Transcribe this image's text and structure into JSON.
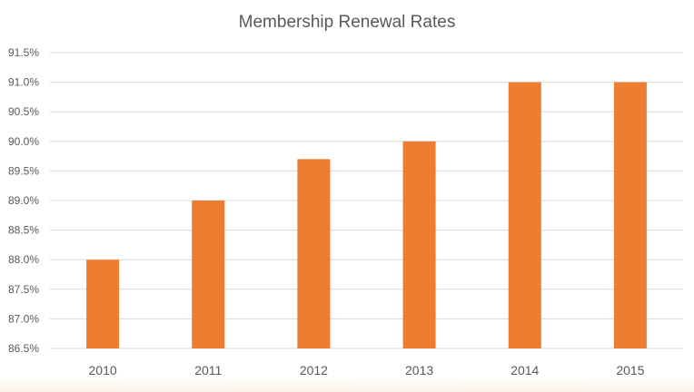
{
  "chart_data": {
    "type": "bar",
    "title": "Membership Renewal Rates",
    "xlabel": "",
    "ylabel": "",
    "categories": [
      "2010",
      "2011",
      "2012",
      "2013",
      "2014",
      "2015"
    ],
    "values": [
      88.0,
      89.0,
      89.7,
      90.0,
      91.0,
      91.0
    ],
    "ylim": [
      86.5,
      91.5
    ],
    "yticks": [
      86.5,
      87.0,
      87.5,
      88.0,
      88.5,
      89.0,
      89.5,
      90.0,
      90.5,
      91.0,
      91.5
    ],
    "ytick_labels": [
      "86.5%",
      "87.0%",
      "87.5%",
      "88.0%",
      "88.5%",
      "89.0%",
      "89.5%",
      "90.0%",
      "90.5%",
      "91.0%",
      "91.5%"
    ],
    "grid": true,
    "legend": "none",
    "bar_color": "#ed7d31",
    "grid_color": "#d9d9d9"
  }
}
